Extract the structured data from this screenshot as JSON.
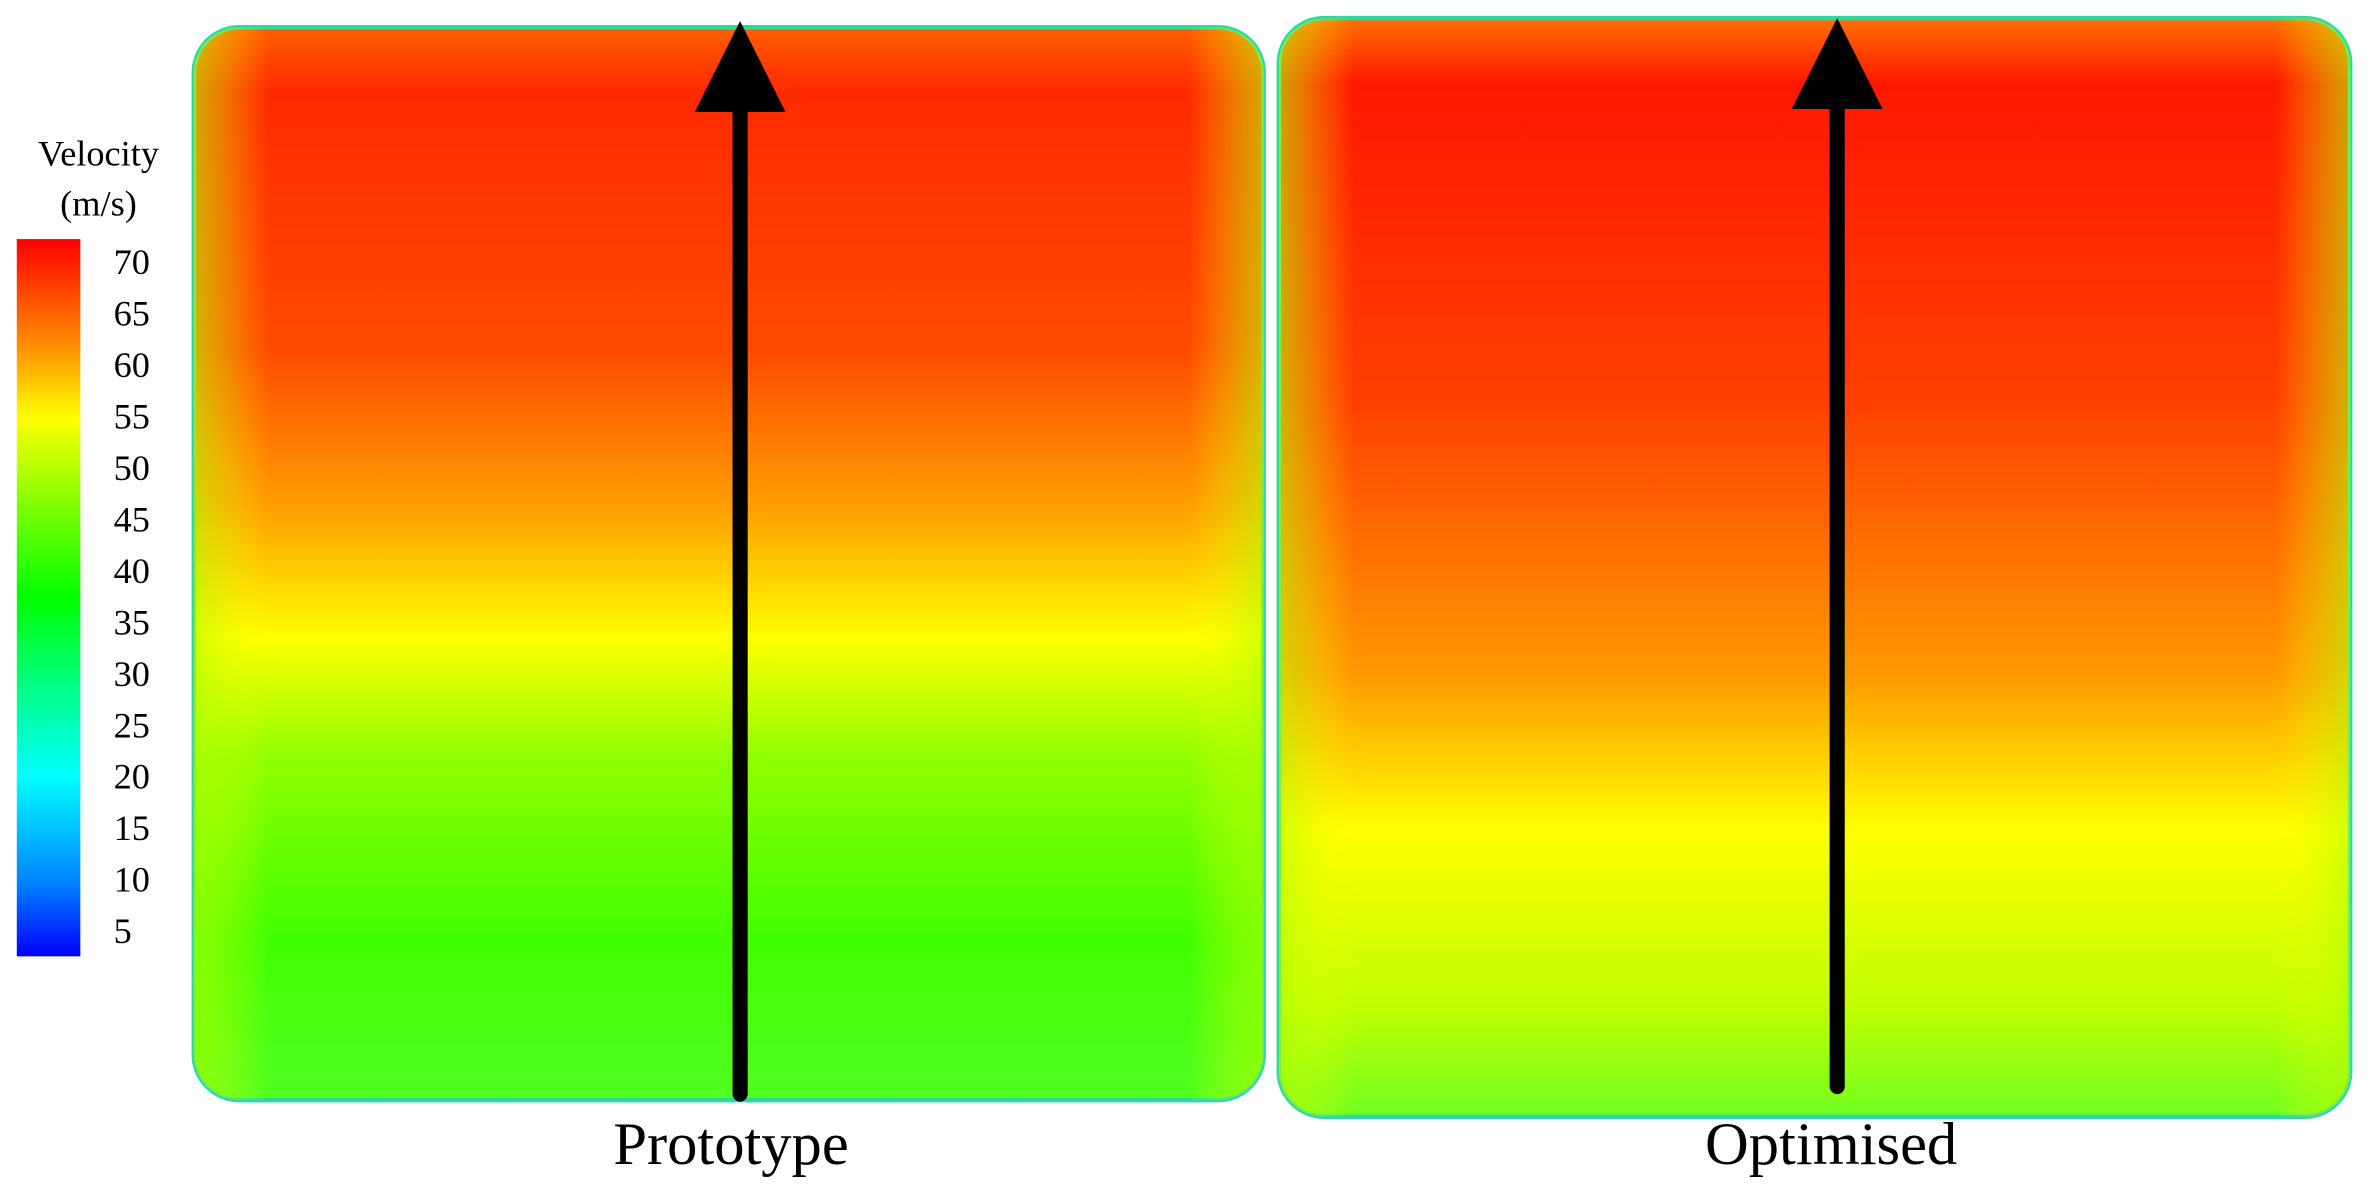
{
  "chart_data": {
    "type": "contour",
    "colorbar": {
      "title": [
        "Velocity",
        "(m/s)"
      ],
      "clim": [
        2.9,
        72.6
      ],
      "ticks": [
        5,
        10,
        15,
        20,
        25,
        30,
        35,
        40,
        45,
        50,
        55,
        60,
        65,
        70
      ]
    },
    "panels": [
      {
        "title": "Prototype"
      },
      {
        "title": "Optimised"
      }
    ]
  }
}
